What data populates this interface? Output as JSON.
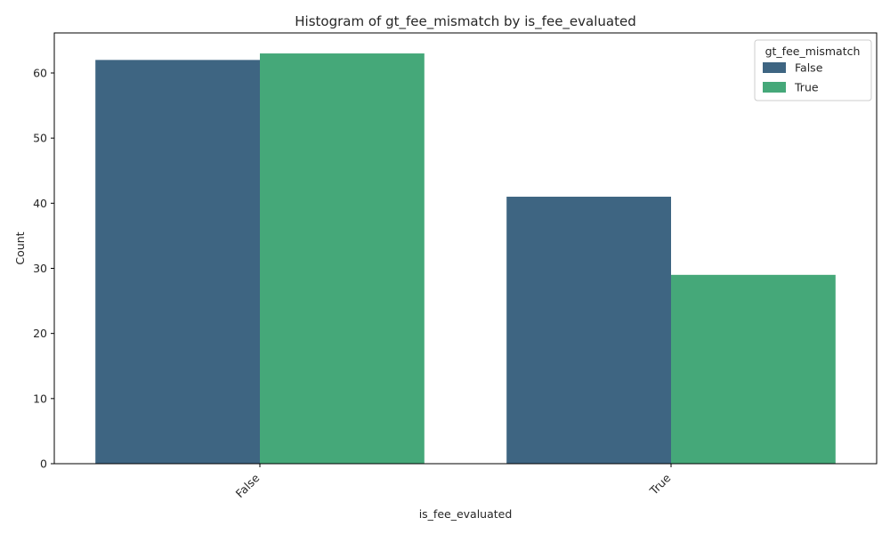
{
  "chart_data": {
    "type": "bar",
    "title": "Histogram of gt_fee_mismatch by is_fee_evaluated",
    "xlabel": "is_fee_evaluated",
    "ylabel": "Count",
    "categories": [
      "False",
      "True"
    ],
    "series": [
      {
        "name": "False",
        "values": [
          62,
          41
        ],
        "color": "#3e6582"
      },
      {
        "name": "True",
        "values": [
          63,
          29
        ],
        "color": "#45a879"
      }
    ],
    "ylim": [
      0,
      66.15
    ],
    "yticks": [
      0,
      10,
      20,
      30,
      40,
      50,
      60
    ],
    "legend": {
      "title": "gt_fee_mismatch",
      "placement": "top-right"
    },
    "grid": false
  }
}
